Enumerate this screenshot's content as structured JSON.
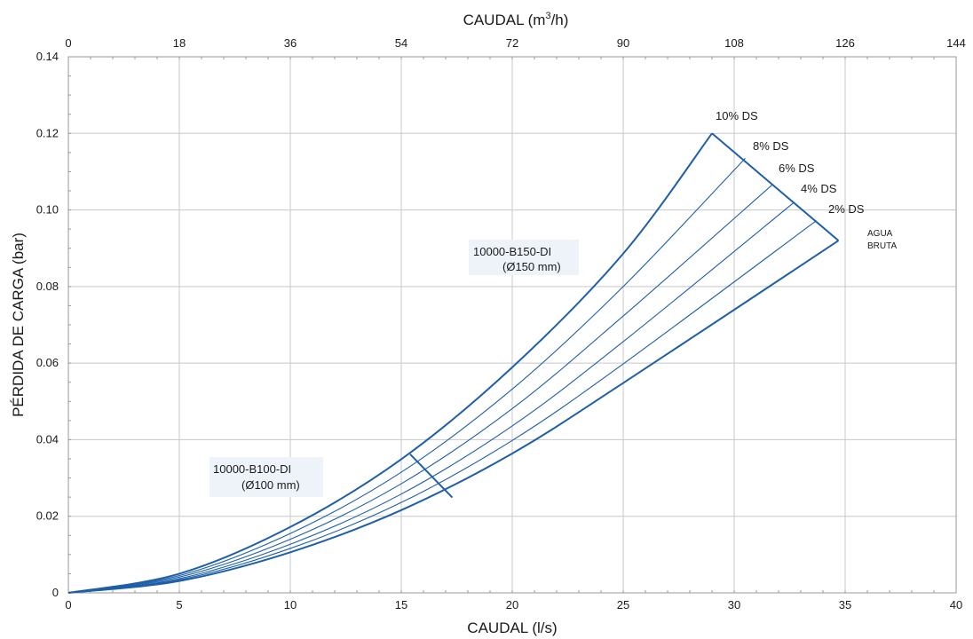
{
  "chart_data": {
    "type": "line",
    "x_axis": {
      "label": "CAUDAL (l/s)",
      "range": [
        0,
        40
      ],
      "ticks": [
        "0",
        "5",
        "10",
        "15",
        "20",
        "25",
        "30",
        "35",
        "40"
      ]
    },
    "x2_axis": {
      "label_prefix": "CAUDAL (m",
      "label_sup": "3",
      "label_suffix": "/h)",
      "range": [
        0,
        144
      ],
      "ticks": [
        "0",
        "18",
        "36",
        "54",
        "72",
        "90",
        "108",
        "126",
        "144"
      ]
    },
    "y_axis": {
      "label": "PÉRDIDA DE CARGA (bar)",
      "range": [
        0,
        0.14
      ],
      "ticks": [
        "0",
        "0.02",
        "0.04",
        "0.06",
        "0.08",
        "0.10",
        "0.12",
        "0.14"
      ]
    },
    "grid": true,
    "colors": {
      "line": "#1f5fa8",
      "grid": "#c8c8c8",
      "label_bg": "#eef3fa"
    },
    "series": [
      {
        "name": "10% DS",
        "points": [
          [
            0,
            0
          ],
          [
            5,
            0.005
          ],
          [
            10,
            0.0172
          ],
          [
            15,
            0.0349
          ],
          [
            20,
            0.0589
          ],
          [
            25,
            0.0886
          ],
          [
            29,
            0.12
          ]
        ]
      },
      {
        "name": "8% DS",
        "points": [
          [
            0,
            0
          ],
          [
            5,
            0.0045
          ],
          [
            10,
            0.0155
          ],
          [
            15,
            0.0315
          ],
          [
            20,
            0.0532
          ],
          [
            25,
            0.08
          ],
          [
            30.5,
            0.1135
          ]
        ]
      },
      {
        "name": "6% DS",
        "points": [
          [
            0,
            0
          ],
          [
            5,
            0.0041
          ],
          [
            10,
            0.014
          ],
          [
            15,
            0.0285
          ],
          [
            20,
            0.0481
          ],
          [
            25,
            0.0723
          ],
          [
            31.7,
            0.1065
          ]
        ]
      },
      {
        "name": "4% DS",
        "points": [
          [
            0,
            0
          ],
          [
            5,
            0.0037
          ],
          [
            10,
            0.0127
          ],
          [
            15,
            0.0258
          ],
          [
            20,
            0.0436
          ],
          [
            25,
            0.0656
          ],
          [
            32.7,
            0.102
          ]
        ]
      },
      {
        "name": "2% DS",
        "points": [
          [
            0,
            0
          ],
          [
            5,
            0.0034
          ],
          [
            10,
            0.0116
          ],
          [
            15,
            0.0236
          ],
          [
            20,
            0.0398
          ],
          [
            25,
            0.0598
          ],
          [
            33.7,
            0.0972
          ]
        ]
      },
      {
        "name": "AGUA BRUTA",
        "points": [
          [
            0,
            0
          ],
          [
            5,
            0.0031
          ],
          [
            10,
            0.0106
          ],
          [
            15,
            0.0216
          ],
          [
            20,
            0.0364
          ],
          [
            25,
            0.0548
          ],
          [
            34.7,
            0.092
          ]
        ]
      }
    ],
    "boundaries": [
      {
        "name": "10000-B100-DI max",
        "points": [
          [
            15.4,
            0.0362
          ],
          [
            17.3,
            0.0249
          ]
        ]
      },
      {
        "name": "10000-B150-DI max",
        "points": [
          [
            29,
            0.12
          ],
          [
            34.7,
            0.092
          ]
        ]
      }
    ],
    "annotations": {
      "ds_10": "10% DS",
      "ds_8": "8% DS",
      "ds_6": "6% DS",
      "ds_4": "4% DS",
      "ds_2": "2% DS",
      "agua_1": "AGUA",
      "agua_2": "BRUTA",
      "b150_model": "10000-B150-DI",
      "b150_size": "(Ø150 mm)",
      "b100_model": "10000-B100-DI",
      "b100_size": "(Ø100 mm)"
    }
  }
}
